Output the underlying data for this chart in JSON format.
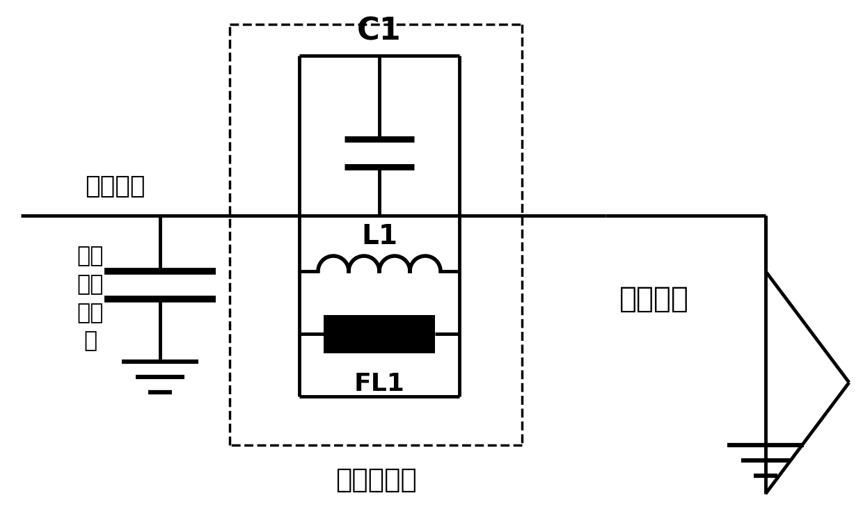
{
  "bg_color": "#ffffff",
  "line_color": "#000000",
  "line_width": 3.5,
  "labels": {
    "neutral_bus": "中性母线",
    "neutral_cap": "中性\n母线\n电容\n器",
    "block_filter": "阻断滤波器",
    "c1": "C1",
    "l1": "L1",
    "fl1": "FL1",
    "ground_fault": "接地故障"
  },
  "figsize": [
    12.4,
    7.52
  ],
  "dpi": 100
}
